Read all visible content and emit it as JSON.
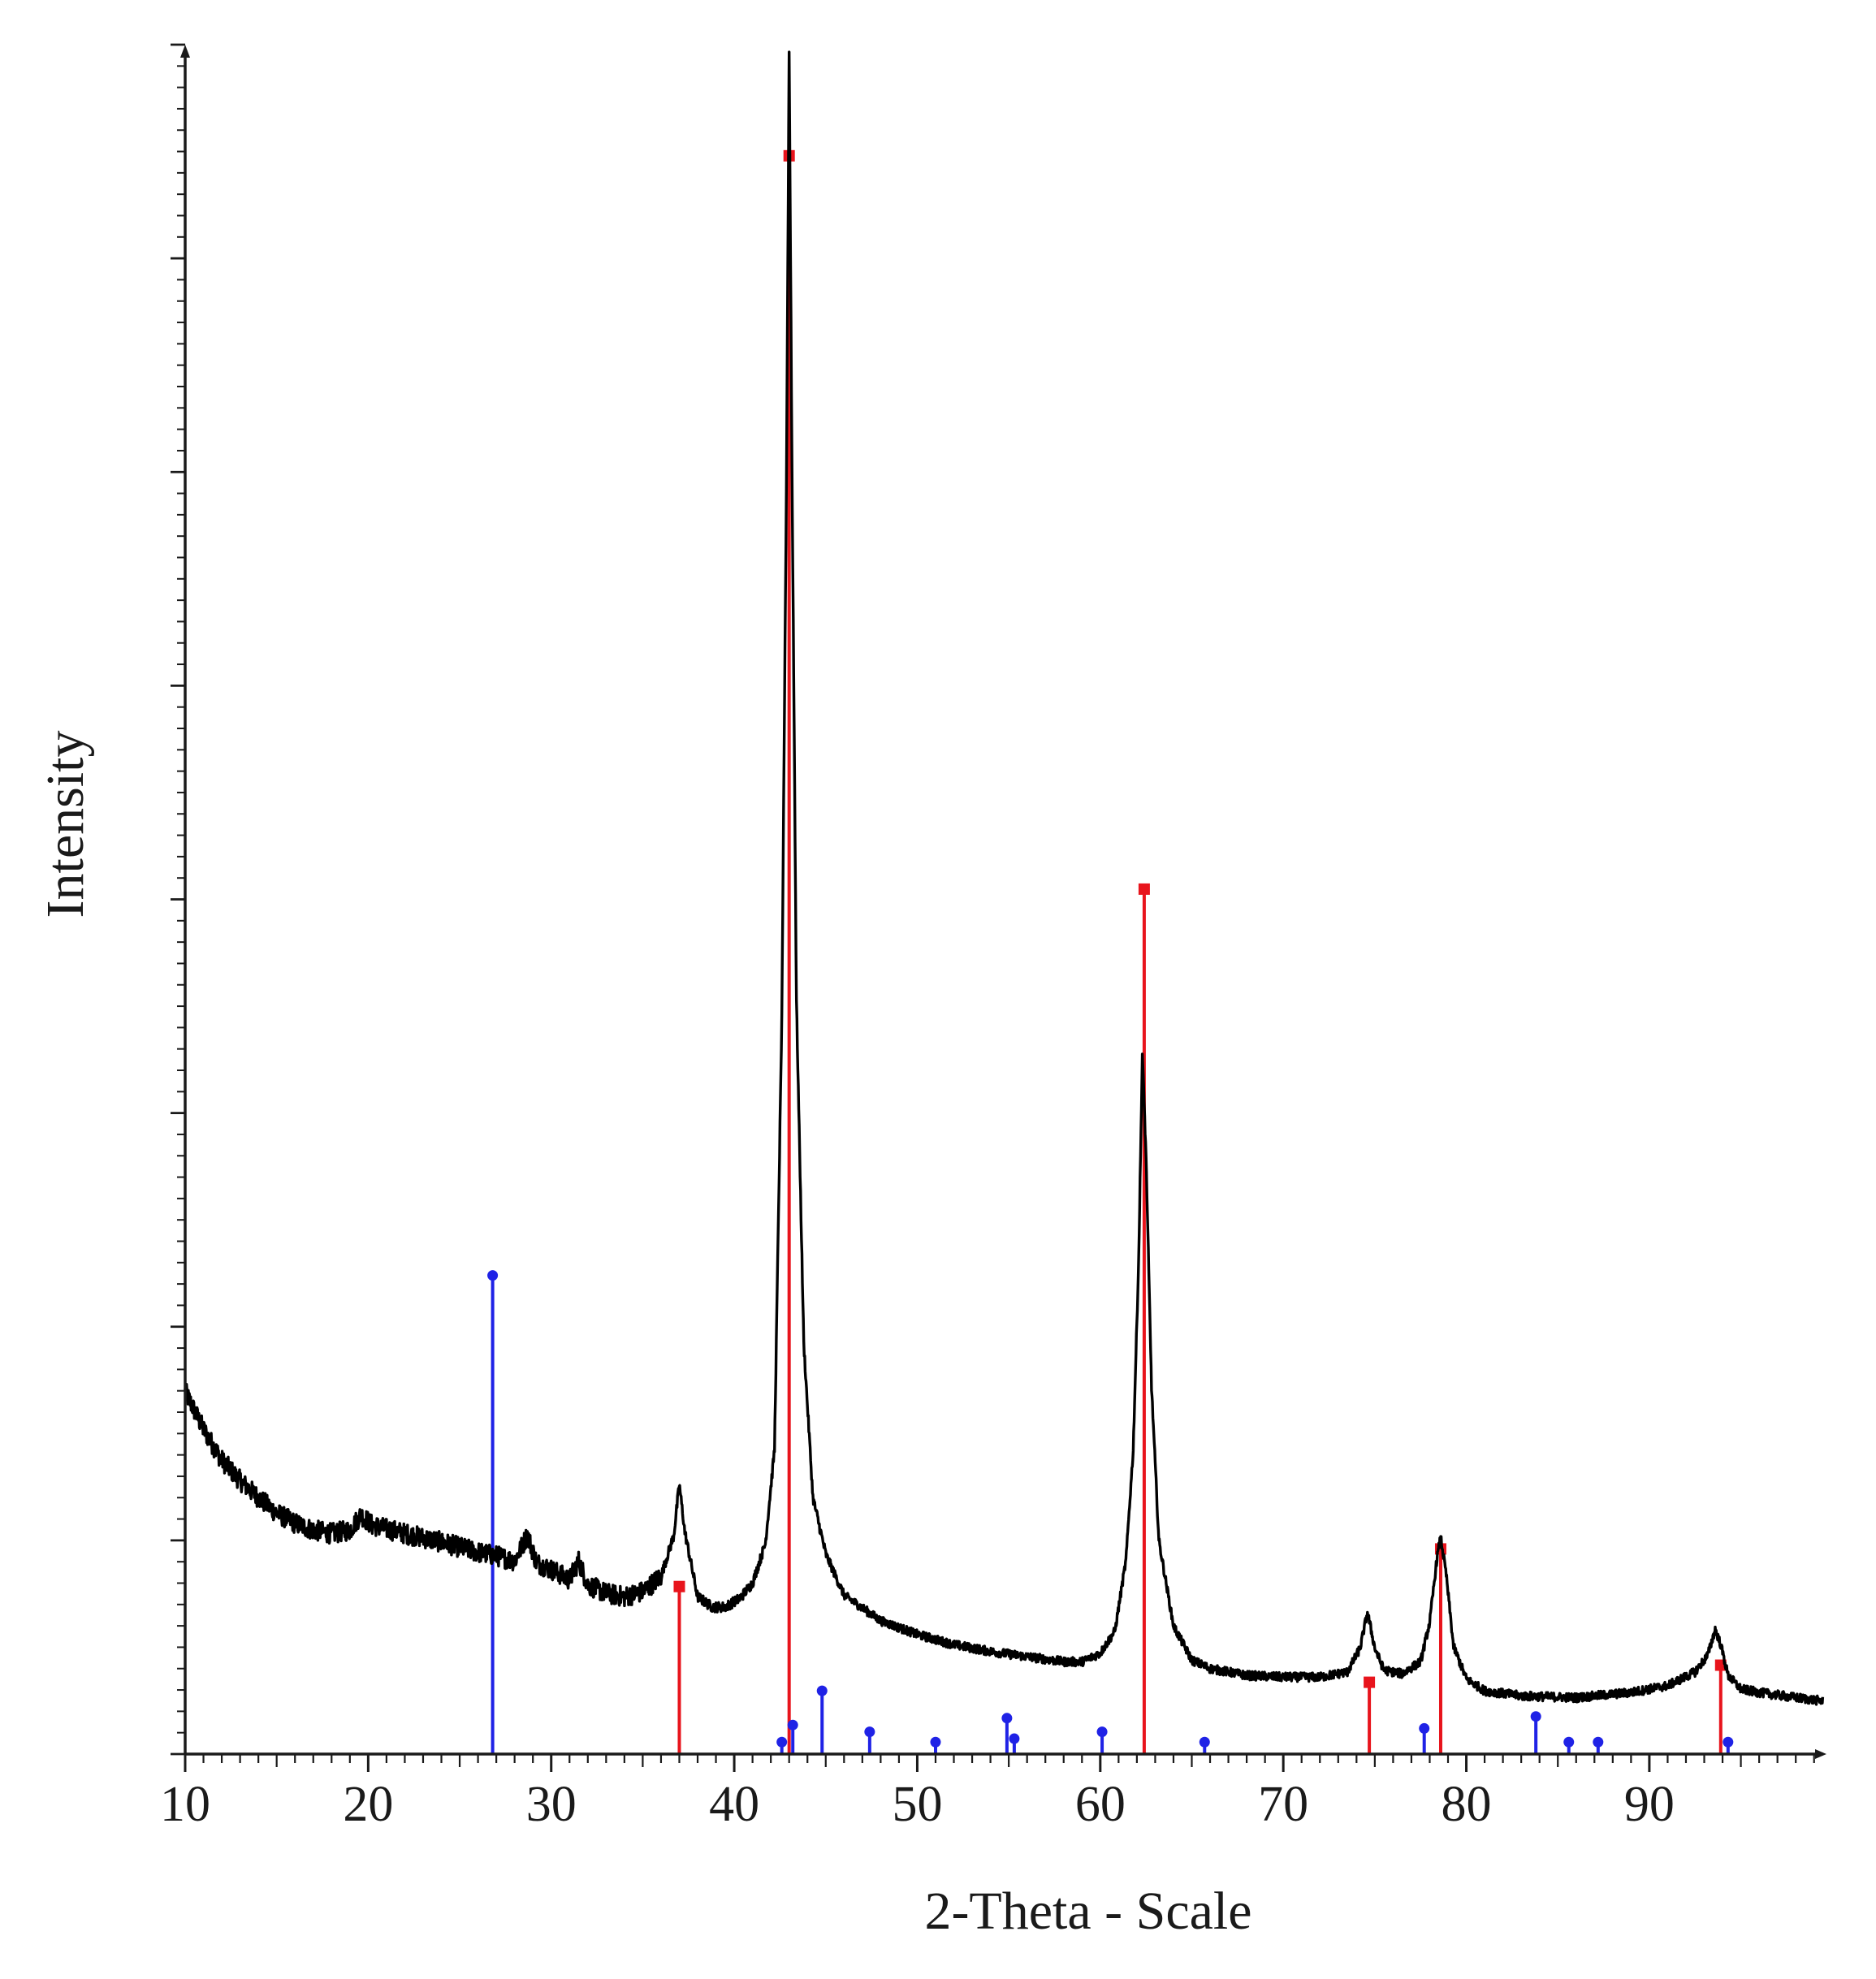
{
  "chart_data": {
    "type": "line",
    "title": "",
    "xlabel": "2-Theta - Scale",
    "ylabel": "Intensity",
    "xlim": [
      10,
      99.5
    ],
    "ylim": [
      0,
      1000
    ],
    "x_ticks": [
      "10",
      "20",
      "30",
      "40",
      "50",
      "60",
      "70",
      "80",
      "90"
    ],
    "grid": false,
    "legend": "none",
    "colors": {
      "pattern": "#000000",
      "phase_red": "#e8141c",
      "phase_blue": "#1f22e6"
    },
    "pattern_keypoints": [
      [
        10.0,
        212
      ],
      [
        11.0,
        190
      ],
      [
        12.0,
        172
      ],
      [
        13.0,
        160
      ],
      [
        14.0,
        150
      ],
      [
        15.0,
        141
      ],
      [
        16.0,
        135
      ],
      [
        17.0,
        131
      ],
      [
        18.0,
        129
      ],
      [
        19.0,
        131
      ],
      [
        19.6,
        140
      ],
      [
        20.2,
        134
      ],
      [
        22.0,
        129
      ],
      [
        24.0,
        124
      ],
      [
        26.0,
        118
      ],
      [
        27.0,
        116
      ],
      [
        28.0,
        113
      ],
      [
        28.7,
        128
      ],
      [
        29.2,
        112
      ],
      [
        30.0,
        108
      ],
      [
        31.0,
        102
      ],
      [
        31.5,
        113
      ],
      [
        32.0,
        99
      ],
      [
        33.0,
        94
      ],
      [
        34.0,
        92
      ],
      [
        35.0,
        95
      ],
      [
        36.0,
        104
      ],
      [
        36.7,
        128
      ],
      [
        37.0,
        158
      ],
      [
        37.3,
        130
      ],
      [
        38.0,
        92
      ],
      [
        38.8,
        86
      ],
      [
        39.5,
        86
      ],
      [
        40.3,
        91
      ],
      [
        41.0,
        100
      ],
      [
        41.7,
        123
      ],
      [
        42.2,
        178
      ],
      [
        42.6,
        430
      ],
      [
        42.85,
        740
      ],
      [
        43.0,
        996
      ],
      [
        43.15,
        760
      ],
      [
        43.4,
        440
      ],
      [
        43.8,
        240
      ],
      [
        44.3,
        150
      ],
      [
        45.0,
        117
      ],
      [
        46.0,
        93
      ],
      [
        48.0,
        78
      ],
      [
        50.0,
        70
      ],
      [
        52.0,
        64
      ],
      [
        54.0,
        60
      ],
      [
        56.0,
        57
      ],
      [
        58.0,
        54
      ],
      [
        59.0,
        54
      ],
      [
        60.0,
        59
      ],
      [
        60.8,
        72
      ],
      [
        61.4,
        113
      ],
      [
        61.8,
        178
      ],
      [
        62.1,
        290
      ],
      [
        62.3,
        410
      ],
      [
        62.5,
        350
      ],
      [
        62.8,
        215
      ],
      [
        63.2,
        125
      ],
      [
        64.0,
        75
      ],
      [
        65.0,
        55
      ],
      [
        66.0,
        50
      ],
      [
        68.0,
        46
      ],
      [
        70.0,
        45
      ],
      [
        72.0,
        45
      ],
      [
        73.5,
        48
      ],
      [
        74.2,
        62
      ],
      [
        74.6,
        83
      ],
      [
        75.0,
        62
      ],
      [
        75.5,
        49
      ],
      [
        76.5,
        47
      ],
      [
        77.5,
        54
      ],
      [
        78.0,
        77
      ],
      [
        78.4,
        115
      ],
      [
        78.6,
        127
      ],
      [
        78.9,
        105
      ],
      [
        79.3,
        63
      ],
      [
        80.0,
        44
      ],
      [
        81.0,
        37
      ],
      [
        83.0,
        34
      ],
      [
        86.0,
        33
      ],
      [
        89.0,
        36
      ],
      [
        91.0,
        40
      ],
      [
        92.5,
        48
      ],
      [
        93.2,
        58
      ],
      [
        93.6,
        73
      ],
      [
        93.9,
        64
      ],
      [
        94.3,
        46
      ],
      [
        95.0,
        38
      ],
      [
        96.0,
        36
      ],
      [
        98.0,
        33
      ],
      [
        99.5,
        31
      ]
    ],
    "series": [
      {
        "color": "#e8141c",
        "marker": "square",
        "sticks": [
          [
            37.0,
            98
          ],
          [
            43.0,
            935
          ],
          [
            62.4,
            506
          ],
          [
            74.7,
            42
          ],
          [
            78.6,
            120
          ],
          [
            93.9,
            52
          ]
        ]
      },
      {
        "color": "#1f22e6",
        "marker": "circle",
        "sticks": [
          [
            26.8,
            280
          ],
          [
            42.6,
            7
          ],
          [
            43.2,
            17
          ],
          [
            44.8,
            37
          ],
          [
            47.4,
            13
          ],
          [
            51.0,
            7
          ],
          [
            54.9,
            21
          ],
          [
            55.3,
            9
          ],
          [
            60.1,
            13
          ],
          [
            65.7,
            7
          ],
          [
            77.7,
            15
          ],
          [
            83.8,
            22
          ],
          [
            85.6,
            7
          ],
          [
            87.2,
            7
          ],
          [
            94.3,
            7
          ]
        ]
      }
    ]
  }
}
